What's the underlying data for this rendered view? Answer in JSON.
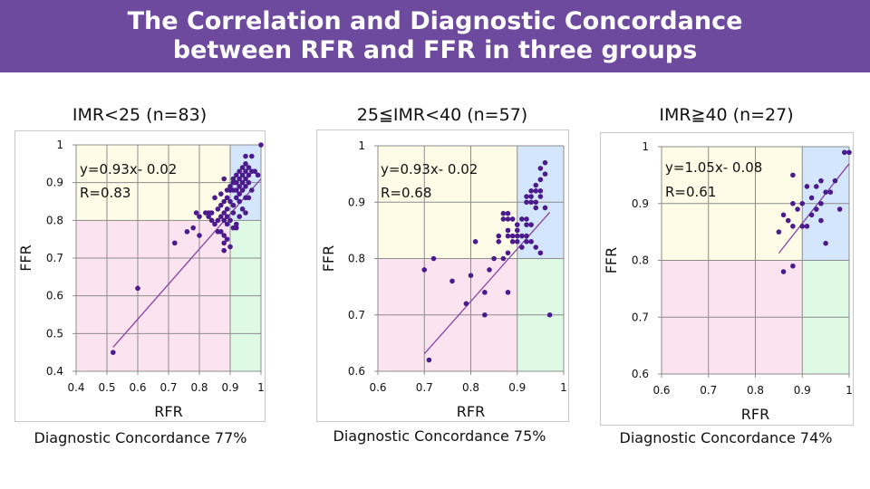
{
  "header": {
    "title_line1": "The Correlation and Diagnostic Concordance",
    "title_line2": "between RFR and FFR in three groups",
    "background_color": "#6e4a9e"
  },
  "colors": {
    "point": "#4b1a8c",
    "trendline": "#8a3fa3",
    "zone_upper_left": "#fefce6",
    "zone_upper_right": "#d4e6fb",
    "zone_lower_left": "#fbe4ef",
    "zone_lower_right": "#def9e4",
    "grid": "#8c8c8c"
  },
  "chart_data": [
    {
      "type": "scatter",
      "title": "IMR<25 (n=83)",
      "xlabel": "RFR",
      "ylabel": "FFR",
      "xlim": [
        0.4,
        1.0
      ],
      "ylim": [
        0.4,
        1.0
      ],
      "xticks": [
        "0.4",
        "0.5",
        "0.6",
        "0.7",
        "0.8",
        "0.9",
        "1"
      ],
      "yticks": [
        "0.4",
        "0.5",
        "0.6",
        "0.7",
        "0.8",
        "0.9",
        "1"
      ],
      "xtick_values": [
        0.4,
        0.5,
        0.6,
        0.7,
        0.8,
        0.9,
        1.0
      ],
      "ytick_values": [
        0.4,
        0.5,
        0.6,
        0.7,
        0.8,
        0.9,
        1.0
      ],
      "grid": true,
      "zone_cutoffs": {
        "x": 0.9,
        "y": 0.8
      },
      "equation": "y=0.93x- 0.02",
      "r_label": "R=0.83",
      "trendline": {
        "slope": 0.93,
        "intercept": -0.02,
        "x_range": [
          0.52,
          1.0
        ]
      },
      "concordance": "Diagnostic Concordance 77%",
      "points": [
        [
          1.0,
          1.0
        ],
        [
          0.97,
          0.97
        ],
        [
          0.95,
          0.97
        ],
        [
          0.95,
          0.95
        ],
        [
          0.94,
          0.94
        ],
        [
          0.96,
          0.94
        ],
        [
          0.93,
          0.93
        ],
        [
          0.95,
          0.93
        ],
        [
          0.97,
          0.93
        ],
        [
          0.98,
          0.93
        ],
        [
          0.92,
          0.92
        ],
        [
          0.94,
          0.92
        ],
        [
          0.96,
          0.92
        ],
        [
          0.99,
          0.92
        ],
        [
          0.91,
          0.91
        ],
        [
          0.93,
          0.91
        ],
        [
          0.95,
          0.91
        ],
        [
          0.88,
          0.91
        ],
        [
          0.92,
          0.9
        ],
        [
          0.94,
          0.9
        ],
        [
          0.91,
          0.9
        ],
        [
          0.96,
          0.9
        ],
        [
          0.93,
          0.89
        ],
        [
          0.9,
          0.89
        ],
        [
          0.95,
          0.89
        ],
        [
          0.89,
          0.88
        ],
        [
          0.91,
          0.88
        ],
        [
          0.92,
          0.88
        ],
        [
          0.9,
          0.88
        ],
        [
          0.94,
          0.88
        ],
        [
          0.97,
          0.88
        ],
        [
          0.87,
          0.87
        ],
        [
          0.93,
          0.87
        ],
        [
          0.85,
          0.86
        ],
        [
          0.89,
          0.86
        ],
        [
          0.92,
          0.86
        ],
        [
          0.95,
          0.86
        ],
        [
          0.96,
          0.86
        ],
        [
          0.88,
          0.85
        ],
        [
          0.9,
          0.85
        ],
        [
          0.93,
          0.85
        ],
        [
          0.87,
          0.84
        ],
        [
          0.91,
          0.84
        ],
        [
          0.89,
          0.83
        ],
        [
          0.86,
          0.83
        ],
        [
          0.94,
          0.83
        ],
        [
          0.83,
          0.82
        ],
        [
          0.79,
          0.82
        ],
        [
          0.82,
          0.82
        ],
        [
          0.84,
          0.82
        ],
        [
          0.88,
          0.82
        ],
        [
          0.91,
          0.82
        ],
        [
          0.95,
          0.82
        ],
        [
          0.8,
          0.81
        ],
        [
          0.83,
          0.81
        ],
        [
          0.87,
          0.81
        ],
        [
          0.89,
          0.81
        ],
        [
          0.93,
          0.81
        ],
        [
          0.86,
          0.8
        ],
        [
          0.88,
          0.8
        ],
        [
          0.84,
          0.8
        ],
        [
          0.9,
          0.8
        ],
        [
          0.85,
          0.79
        ],
        [
          0.92,
          0.79
        ],
        [
          0.89,
          0.79
        ],
        [
          0.91,
          0.78
        ],
        [
          0.78,
          0.78
        ],
        [
          0.92,
          0.78
        ],
        [
          0.86,
          0.77
        ],
        [
          0.76,
          0.77
        ],
        [
          0.88,
          0.76
        ],
        [
          0.8,
          0.76
        ],
        [
          0.87,
          0.77
        ],
        [
          0.89,
          0.75
        ],
        [
          0.72,
          0.74
        ],
        [
          0.88,
          0.74
        ],
        [
          0.9,
          0.73
        ],
        [
          0.88,
          0.72
        ],
        [
          0.6,
          0.62
        ],
        [
          0.52,
          0.45
        ]
      ]
    },
    {
      "type": "scatter",
      "title": "25≦IMR<40 (n=57)",
      "xlabel": "RFR",
      "ylabel": "FFR",
      "xlim": [
        0.6,
        1.0
      ],
      "ylim": [
        0.6,
        1.0
      ],
      "xticks": [
        "0.6",
        "0.7",
        "0.8",
        "0.9",
        "1"
      ],
      "yticks": [
        "0.6",
        "0.7",
        "0.8",
        "0.9",
        "1"
      ],
      "xtick_values": [
        0.6,
        0.7,
        0.8,
        0.9,
        1.0
      ],
      "ytick_values": [
        0.6,
        0.7,
        0.8,
        0.9,
        1.0
      ],
      "grid": true,
      "zone_cutoffs": {
        "x": 0.9,
        "y": 0.8
      },
      "equation": "y=0.93x- 0.02",
      "r_label": "R=0.68",
      "trendline": {
        "slope": 0.93,
        "intercept": -0.02,
        "x_range": [
          0.7,
          0.97
        ]
      },
      "concordance": "Diagnostic Concordance 75%",
      "points": [
        [
          0.96,
          0.97
        ],
        [
          0.95,
          0.96
        ],
        [
          0.96,
          0.95
        ],
        [
          0.95,
          0.94
        ],
        [
          0.94,
          0.93
        ],
        [
          0.93,
          0.92
        ],
        [
          0.94,
          0.92
        ],
        [
          0.95,
          0.92
        ],
        [
          0.92,
          0.91
        ],
        [
          0.93,
          0.91
        ],
        [
          0.95,
          0.91
        ],
        [
          0.92,
          0.9
        ],
        [
          0.93,
          0.9
        ],
        [
          0.94,
          0.9
        ],
        [
          0.94,
          0.89
        ],
        [
          0.96,
          0.89
        ],
        [
          0.87,
          0.88
        ],
        [
          0.88,
          0.88
        ],
        [
          0.87,
          0.87
        ],
        [
          0.88,
          0.87
        ],
        [
          0.89,
          0.87
        ],
        [
          0.91,
          0.87
        ],
        [
          0.92,
          0.87
        ],
        [
          0.92,
          0.86
        ],
        [
          0.93,
          0.86
        ],
        [
          0.9,
          0.86
        ],
        [
          0.88,
          0.85
        ],
        [
          0.9,
          0.85
        ],
        [
          0.86,
          0.84
        ],
        [
          0.89,
          0.84
        ],
        [
          0.9,
          0.84
        ],
        [
          0.91,
          0.84
        ],
        [
          0.92,
          0.84
        ],
        [
          0.88,
          0.84
        ],
        [
          0.81,
          0.83
        ],
        [
          0.86,
          0.83
        ],
        [
          0.89,
          0.83
        ],
        [
          0.9,
          0.83
        ],
        [
          0.92,
          0.83
        ],
        [
          0.93,
          0.83
        ],
        [
          0.91,
          0.82
        ],
        [
          0.94,
          0.82
        ],
        [
          0.88,
          0.81
        ],
        [
          0.95,
          0.81
        ],
        [
          0.87,
          0.8
        ],
        [
          0.72,
          0.8
        ],
        [
          0.7,
          0.78
        ],
        [
          0.84,
          0.78
        ],
        [
          0.8,
          0.77
        ],
        [
          0.76,
          0.76
        ],
        [
          0.83,
          0.74
        ],
        [
          0.88,
          0.74
        ],
        [
          0.79,
          0.72
        ],
        [
          0.83,
          0.7
        ],
        [
          0.97,
          0.7
        ],
        [
          0.71,
          0.62
        ],
        [
          0.85,
          0.8
        ]
      ]
    },
    {
      "type": "scatter",
      "title": "IMR≧40 (n=27)",
      "xlabel": "RFR",
      "ylabel": "FFR",
      "xlim": [
        0.6,
        1.0
      ],
      "ylim": [
        0.6,
        1.0
      ],
      "xticks": [
        "0.6",
        "0.7",
        "0.8",
        "0.9",
        "1"
      ],
      "yticks": [
        "0.6",
        "0.7",
        "0.8",
        "0.9",
        "1"
      ],
      "xtick_values": [
        0.6,
        0.7,
        0.8,
        0.9,
        1.0
      ],
      "ytick_values": [
        0.6,
        0.7,
        0.8,
        0.9,
        1.0
      ],
      "grid": true,
      "zone_cutoffs": {
        "x": 0.9,
        "y": 0.8
      },
      "equation": "y=1.05x- 0.08",
      "r_label": "R=0.61",
      "trendline": {
        "slope": 1.05,
        "intercept": -0.08,
        "x_range": [
          0.85,
          1.0
        ]
      },
      "concordance": "Diagnostic Concordance 74%",
      "points": [
        [
          0.99,
          0.99
        ],
        [
          1.0,
          0.99
        ],
        [
          0.88,
          0.95
        ],
        [
          0.94,
          0.94
        ],
        [
          0.91,
          0.93
        ],
        [
          0.93,
          0.93
        ],
        [
          0.95,
          0.92
        ],
        [
          0.88,
          0.9
        ],
        [
          0.93,
          0.89
        ],
        [
          0.98,
          0.89
        ],
        [
          0.86,
          0.88
        ],
        [
          0.94,
          0.87
        ],
        [
          0.88,
          0.86
        ],
        [
          0.91,
          0.86
        ],
        [
          0.85,
          0.85
        ],
        [
          0.95,
          0.83
        ],
        [
          0.88,
          0.79
        ],
        [
          0.86,
          0.78
        ],
        [
          0.92,
          0.91
        ],
        [
          0.96,
          0.92
        ],
        [
          0.9,
          0.9
        ],
        [
          0.89,
          0.89
        ],
        [
          0.92,
          0.88
        ],
        [
          0.87,
          0.87
        ],
        [
          0.9,
          0.86
        ],
        [
          0.94,
          0.9
        ],
        [
          0.97,
          0.94
        ]
      ]
    }
  ]
}
